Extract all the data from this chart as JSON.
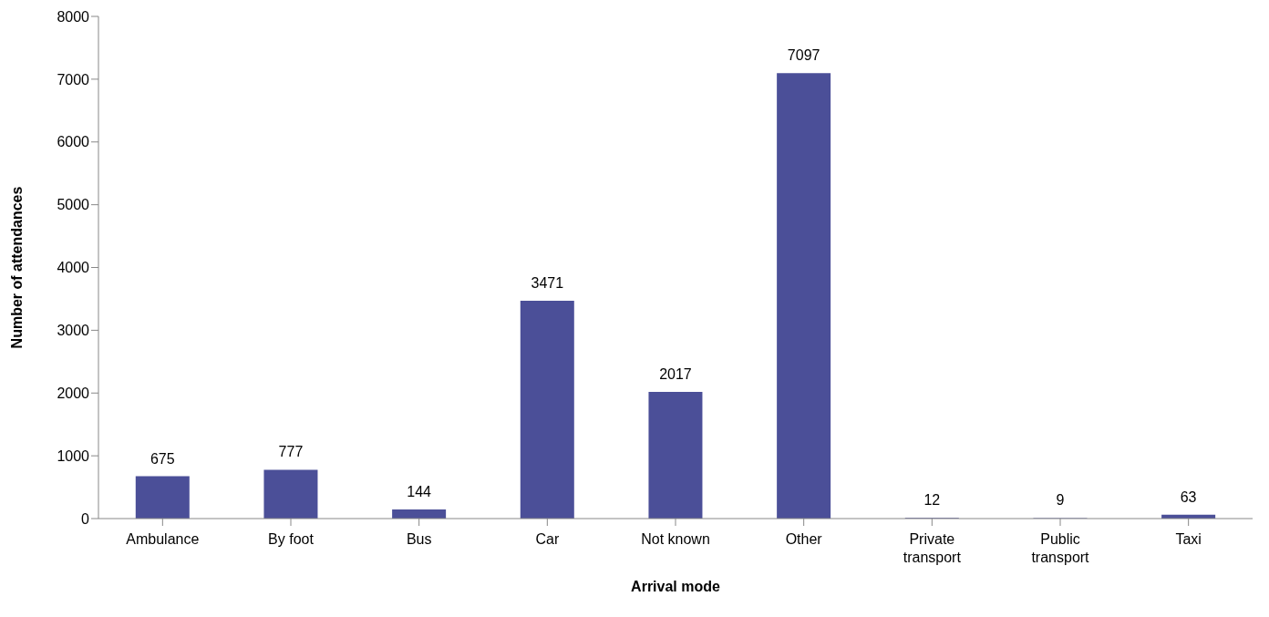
{
  "chart_data": {
    "type": "bar",
    "xlabel": "Arrival mode",
    "ylabel": "Number of attendances",
    "categories": [
      "Ambulance",
      "By foot",
      "Bus",
      "Car",
      "Not known",
      "Other",
      "Private transport",
      "Public transport",
      "Taxi"
    ],
    "values": [
      675,
      777,
      144,
      3471,
      2017,
      7097,
      12,
      9,
      63
    ],
    "color": "#4b4f98",
    "ylim": [
      0,
      8000
    ],
    "yticks": [
      0,
      1000,
      2000,
      3000,
      4000,
      5000,
      6000,
      7000,
      8000
    ],
    "grid": false,
    "legend": false,
    "data_labels": true
  }
}
